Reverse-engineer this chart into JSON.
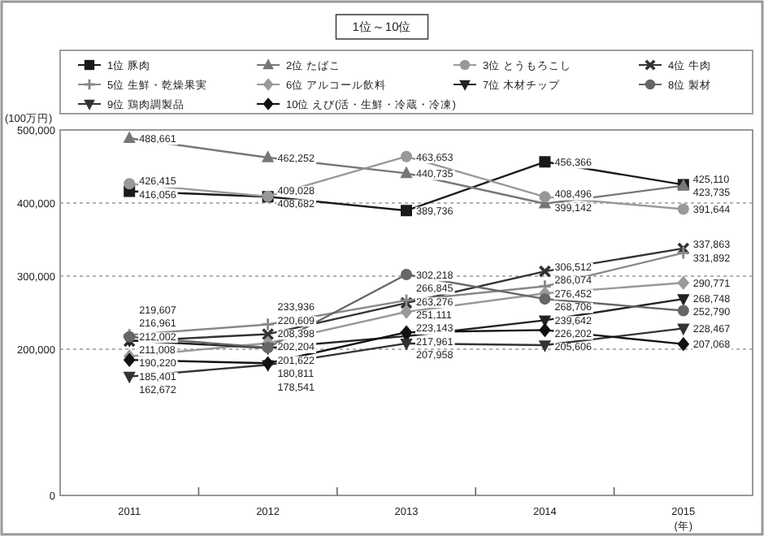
{
  "chart_data": {
    "type": "line",
    "title": "1位～10位",
    "ylabel": "(100万円)",
    "xlabel": "(年)",
    "categories": [
      "2011",
      "2012",
      "2013",
      "2014",
      "2015"
    ],
    "ylim": [
      0,
      500000
    ],
    "yticks": [
      0,
      {
        "value": 200000,
        "label": "200,000"
      },
      {
        "value": 300000,
        "label": "300,000"
      },
      {
        "value": 400000,
        "label": "400,000"
      },
      {
        "value": 500000,
        "label": "500,000"
      }
    ],
    "grid": "y",
    "legend": "top",
    "series": [
      {
        "name": "1位 豚肉",
        "color": "#1a1a1a",
        "marker": "square",
        "values": [
          416056,
          408682,
          389736,
          456366,
          425110
        ],
        "value_labels": [
          "416,056",
          "408,682",
          "389,736",
          "456,366",
          "425,110"
        ]
      },
      {
        "name": "2位 たばこ",
        "color": "#777777",
        "marker": "triangle",
        "values": [
          488661,
          462252,
          440735,
          399142,
          423735
        ],
        "value_labels": [
          "488,661",
          "462,252",
          "440,735",
          "399,142",
          "423,735"
        ]
      },
      {
        "name": "3位 とうもろこし",
        "color": "#999999",
        "marker": "circle",
        "values": [
          426415,
          409028,
          463653,
          408496,
          391644
        ],
        "value_labels": [
          "426,415",
          "409,028",
          "463,653",
          "408,496",
          "391,644"
        ]
      },
      {
        "name": "4位 牛肉",
        "color": "#333333",
        "marker": "cross",
        "values": [
          211008,
          220609,
          263276,
          306512,
          337863
        ],
        "value_labels": [
          "211,008",
          "220,609",
          "263,276",
          "306,512",
          "337,863"
        ]
      },
      {
        "name": "5位 生鮮・乾燥果実",
        "color": "#888888",
        "marker": "plus",
        "values": [
          219607,
          233936,
          266845,
          286074,
          331892
        ],
        "value_labels": [
          "219,607",
          "233,936",
          "266,845",
          "286,074",
          "331,892"
        ]
      },
      {
        "name": "6位 アルコール飲料",
        "color": "#999999",
        "marker": "diamond",
        "values": [
          190220,
          208398,
          251111,
          276452,
          290771
        ],
        "value_labels": [
          "190,220",
          "208,398",
          "251,111",
          "276,452",
          "290,771"
        ]
      },
      {
        "name": "7位 木材チップ",
        "color": "#222222",
        "marker": "triangle-down",
        "values": [
          212002,
          201622,
          217961,
          239642,
          268748
        ],
        "value_labels": [
          "212,002",
          "201,622",
          "217,961",
          "239,642",
          "268,748"
        ]
      },
      {
        "name": "8位 製材",
        "color": "#666666",
        "marker": "circle",
        "values": [
          216961,
          202204,
          302218,
          268706,
          252790
        ],
        "value_labels": [
          "216,961",
          "202,204",
          "302,218",
          "268,706",
          "252,790"
        ]
      },
      {
        "name": "9位 鶏肉調製品",
        "color": "#333333",
        "marker": "triangle-down",
        "values": [
          162672,
          178541,
          207958,
          205606,
          228467
        ],
        "value_labels": [
          "162,672",
          "178,541",
          "207,958",
          "205,606",
          "228,467"
        ]
      },
      {
        "name": "10位 えび(活・生鮮・冷蔵・冷凍)",
        "color": "#111111",
        "marker": "diamond",
        "values": [
          185401,
          180811,
          223143,
          226202,
          207068
        ],
        "value_labels": [
          "185,401",
          "180,811",
          "223,143",
          "226,202",
          "207,068"
        ]
      }
    ]
  }
}
